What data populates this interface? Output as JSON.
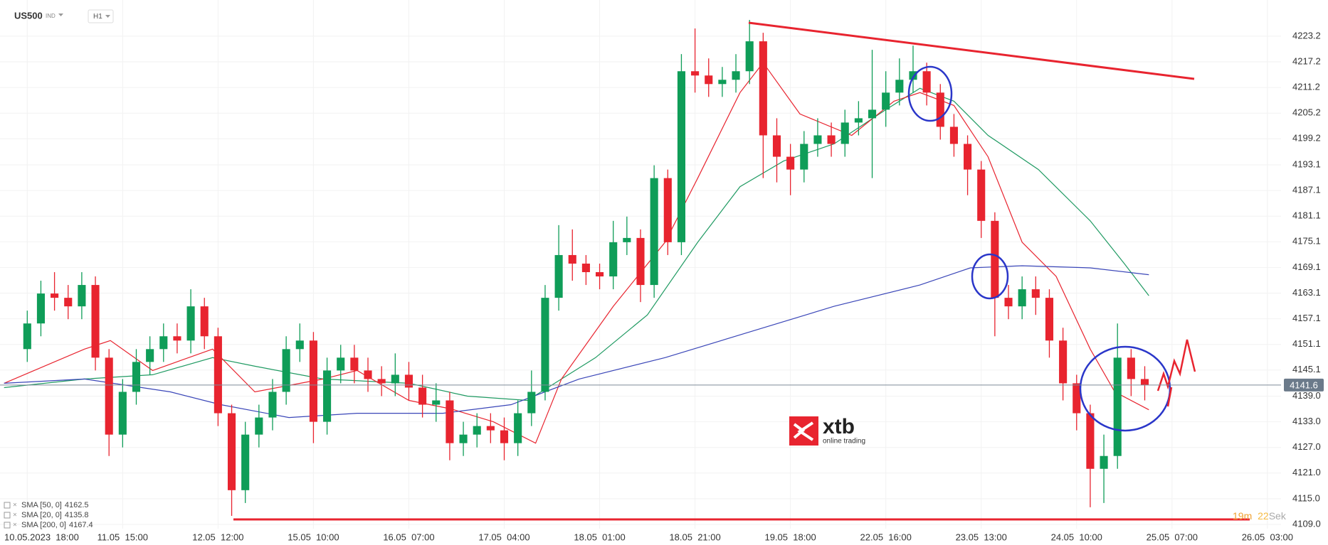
{
  "header": {
    "symbol": "US500",
    "market": "IND",
    "timeframe": "H1"
  },
  "logo": {
    "name": "xtb",
    "tagline": "online trading"
  },
  "countdown": {
    "minutes": "19m",
    "seconds": "22",
    "unit": "Sek"
  },
  "chart_data": {
    "type": "candlestick",
    "last_price": 4141.6,
    "xlim": [
      -2,
      92
    ],
    "ylim": [
      4108,
      4230
    ],
    "xticks": [
      {
        "value": 0,
        "label": "10.05.2023  18:00"
      },
      {
        "value": 7,
        "label": "11.05  15:00"
      },
      {
        "value": 14,
        "label": "12.05  12:00"
      },
      {
        "value": 21,
        "label": "15.05  10:00"
      },
      {
        "value": 28,
        "label": "16.05  07:00"
      },
      {
        "value": 35,
        "label": "17.05  04:00"
      },
      {
        "value": 42,
        "label": "18.05  01:00"
      },
      {
        "value": 49,
        "label": "18.05  21:00"
      },
      {
        "value": 56,
        "label": "19.05  18:00"
      },
      {
        "value": 63,
        "label": "22.05  16:00"
      },
      {
        "value": 70,
        "label": "23.05  13:00"
      },
      {
        "value": 77,
        "label": "24.05  10:00"
      },
      {
        "value": 84,
        "label": "25.05  07:00"
      },
      {
        "value": 91,
        "label": "26.05  03:00"
      }
    ],
    "yticks": [
      {
        "value": 4109,
        "label": "4109.0"
      },
      {
        "value": 4115,
        "label": "4115.0"
      },
      {
        "value": 4121,
        "label": "4121.0"
      },
      {
        "value": 4127,
        "label": "4127.0"
      },
      {
        "value": 4133,
        "label": "4133.0"
      },
      {
        "value": 4139,
        "label": "4139.0"
      },
      4145.1,
      4151.1,
      4157.1,
      4163.1,
      4169.1,
      4175.1,
      4181.1,
      4187.1,
      4193.1,
      4199.2,
      4205.2,
      4211.2,
      4217.2,
      4223.2
    ],
    "up_color": "#0f9d58",
    "down_color": "#e8242f",
    "grid": true,
    "open": [
      4150,
      4156,
      4163,
      4162,
      4160,
      4165,
      4148,
      4130,
      4140,
      4147,
      4150,
      4153,
      4152,
      4160,
      4153,
      4135,
      4117,
      4130,
      4134,
      4140,
      4150,
      4152,
      4133,
      4145,
      4148,
      4145,
      4143,
      4142,
      4144,
      4141,
      4137,
      4138,
      4128,
      4130,
      4132,
      4131,
      4128,
      4135,
      4140,
      4162,
      4172,
      4170,
      4168,
      4167,
      4175,
      4176,
      4165,
      4190,
      4175,
      4215,
      4214,
      4212,
      4213,
      4215,
      4222,
      4200,
      4195,
      4192,
      4198,
      4200,
      4198,
      4203,
      4204,
      4206,
      4210,
      4213,
      4215,
      4210,
      4202,
      4198,
      4192,
      4180,
      4162,
      4160,
      4164,
      4162,
      4152,
      4142,
      4135,
      4122,
      4125,
      4148,
      4143
    ],
    "high": [
      4159,
      4166,
      4168,
      4165,
      4168,
      4167,
      4150,
      4143,
      4150,
      4153,
      4156,
      4156,
      4164,
      4162,
      4155,
      4137,
      4133,
      4137,
      4143,
      4153,
      4156,
      4154,
      4148,
      4151,
      4151,
      4148,
      4146,
      4149,
      4147,
      4144,
      4142,
      4140,
      4133,
      4135,
      4135,
      4134,
      4138,
      4145,
      4165,
      4179,
      4178,
      4172,
      4170,
      4180,
      4181,
      4178,
      4193,
      4192,
      4219,
      4225,
      4218,
      4216,
      4219,
      4227,
      4224,
      4204,
      4198,
      4201,
      4204,
      4203,
      4206,
      4208,
      4220,
      4215,
      4218,
      4221,
      4217,
      4212,
      4205,
      4200,
      4194,
      4182,
      4165,
      4167,
      4167,
      4164,
      4155,
      4144,
      4137,
      4130,
      4156,
      4150,
      4146
    ],
    "low": [
      4147,
      4153,
      4159,
      4157,
      4157,
      4145,
      4125,
      4127,
      4137,
      4144,
      4147,
      4149,
      4149,
      4150,
      4132,
      4111,
      4114,
      4127,
      4131,
      4137,
      4147,
      4128,
      4130,
      4142,
      4142,
      4140,
      4139,
      4139,
      4138,
      4134,
      4133,
      4124,
      4125,
      4127,
      4128,
      4124,
      4125,
      4132,
      4138,
      4159,
      4166,
      4165,
      4164,
      4164,
      4172,
      4161,
      4162,
      4172,
      4172,
      4210,
      4209,
      4209,
      4210,
      4212,
      4190,
      4189,
      4186,
      4189,
      4195,
      4195,
      4195,
      4200,
      4190,
      4202,
      4207,
      4210,
      4207,
      4199,
      4195,
      4186,
      4176,
      4153,
      4157,
      4157,
      4158,
      4148,
      4138,
      4131,
      4113,
      4114,
      4122,
      4139,
      4138
    ],
    "close": [
      4156,
      4163,
      4162,
      4160,
      4165,
      4148,
      4130,
      4140,
      4147,
      4150,
      4153,
      4152,
      4160,
      4153,
      4135,
      4117,
      4130,
      4134,
      4140,
      4150,
      4152,
      4133,
      4145,
      4148,
      4145,
      4143,
      4142,
      4144,
      4141,
      4137,
      4138,
      4128,
      4130,
      4132,
      4131,
      4128,
      4135,
      4140,
      4162,
      4172,
      4170,
      4168,
      4167,
      4175,
      4176,
      4165,
      4190,
      4175,
      4215,
      4214,
      4212,
      4213,
      4215,
      4222,
      4200,
      4195,
      4192,
      4198,
      4200,
      4198,
      4203,
      4204,
      4206,
      4210,
      4213,
      4215,
      4210,
      4202,
      4198,
      4192,
      4180,
      4162,
      4160,
      4164,
      4162,
      4152,
      4142,
      4135,
      4122,
      4125,
      4148,
      4143,
      4141.6
    ],
    "series": [
      {
        "name": "SMA [50, 0]",
        "last_value": 4162.5,
        "color": "#1f9a62",
        "x": [
          -1.7,
          4.2,
          9.2,
          13.6,
          16.7,
          21.7,
          28,
          32.3,
          36.7,
          41.7,
          45.5,
          49.2,
          52.3,
          55.5,
          59.2,
          63,
          65.5,
          68,
          70.5,
          74.2,
          78,
          80.5,
          82.3
        ],
        "values": [
          4141,
          4143,
          4144,
          4148,
          4146,
          4143,
          4142,
          4139,
          4138,
          4148,
          4158,
          4175,
          4188,
          4194,
          4198,
          4206,
          4211,
          4208,
          4200,
          4192,
          4180,
          4170,
          4162.5
        ]
      },
      {
        "name": "SMA [20, 0]",
        "last_value": 4135.8,
        "color": "#e8242f",
        "x": [
          -1.7,
          4.2,
          6.1,
          9.2,
          13.6,
          16.7,
          21.7,
          24.2,
          28,
          31.1,
          34.2,
          37.3,
          39.2,
          43,
          46.8,
          49.2,
          52.3,
          54,
          56.7,
          60.5,
          63.6,
          65.5,
          68,
          70.5,
          73,
          75.5,
          78,
          79.8,
          82.3
        ],
        "values": [
          4142,
          4150,
          4152,
          4145,
          4150,
          4140,
          4143,
          4145,
          4138,
          4136,
          4133,
          4128,
          4143,
          4160,
          4175,
          4190,
          4210,
          4217,
          4205,
          4200,
          4208,
          4210,
          4207,
          4195,
          4175,
          4167,
          4150,
          4140,
          4135.8
        ]
      },
      {
        "name": "SMA [200, 0]",
        "last_value": 4167.4,
        "color": "#3a46b8",
        "x": [
          -1.7,
          4.2,
          10.5,
          14.2,
          19.2,
          24.2,
          30.5,
          35.5,
          40.5,
          46.8,
          53,
          59.2,
          65.5,
          69.2,
          73,
          78,
          82.3
        ],
        "values": [
          4142,
          4143,
          4140,
          4137,
          4134,
          4135,
          4135,
          4137,
          4143,
          4148,
          4154,
          4160,
          4165,
          4169,
          4169.5,
          4169,
          4167.4
        ]
      }
    ]
  }
}
